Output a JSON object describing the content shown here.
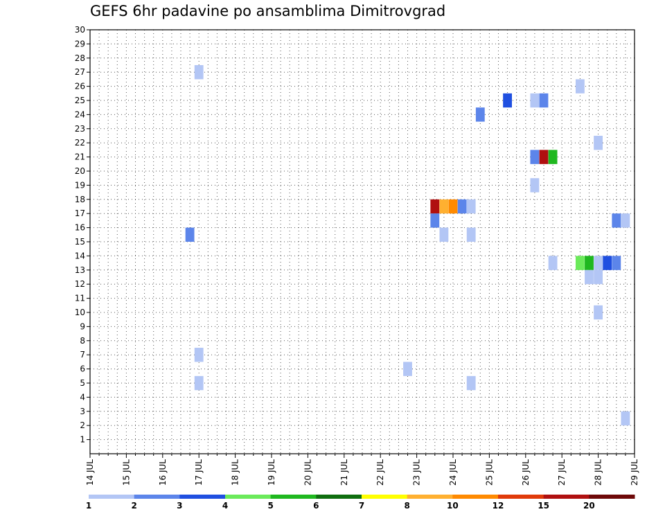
{
  "chart_data": {
    "type": "heatmap",
    "title": "GEFS 6hr padavine po ansamblima Dimitrovgrad",
    "xlabel": "",
    "ylabel": "",
    "x_ticks": [
      "14 JUL",
      "15 JUL",
      "16 JUL",
      "17 JUL",
      "18 JUL",
      "19 JUL",
      "20 JUL",
      "21 JUL",
      "22 JUL",
      "23 JUL",
      "24 JUL",
      "25 JUL",
      "26 JUL",
      "27 JUL",
      "28 JUL",
      "29 JUL"
    ],
    "x_range_days": [
      14,
      29
    ],
    "y_ticks": [
      1,
      2,
      3,
      4,
      5,
      6,
      7,
      8,
      9,
      10,
      11,
      12,
      13,
      14,
      15,
      16,
      17,
      18,
      19,
      20,
      21,
      22,
      23,
      24,
      25,
      26,
      27,
      28,
      29,
      30
    ],
    "y_range": [
      0,
      30
    ],
    "grid": true,
    "grid_style": "dotted",
    "legend": {
      "placement": "bottom",
      "labels": [
        "1",
        "2",
        "3",
        "4",
        "5",
        "6",
        "7",
        "8",
        "10",
        "12",
        "15",
        "20"
      ],
      "colors": [
        "#b3c6f5",
        "#5c85ea",
        "#1f4fe0",
        "#6bea5a",
        "#1fb81f",
        "#0f6e0f",
        "#ffff00",
        "#ffb030",
        "#ff8a00",
        "#e03a0a",
        "#b01010",
        "#6e0808"
      ]
    },
    "cells": [
      {
        "day": 17.0,
        "member": 27,
        "value": 1.5
      },
      {
        "day": 17.0,
        "member": 7,
        "value": 1.5
      },
      {
        "day": 17.0,
        "member": 5,
        "value": 1.5
      },
      {
        "day": 16.75,
        "member": 15.5,
        "value": 2.5
      },
      {
        "day": 22.75,
        "member": 6,
        "value": 1.5
      },
      {
        "day": 23.5,
        "member": 17.5,
        "value": 15
      },
      {
        "day": 23.75,
        "member": 17.5,
        "value": 8
      },
      {
        "day": 24.0,
        "member": 17.5,
        "value": 10
      },
      {
        "day": 24.25,
        "member": 17.5,
        "value": 2.5
      },
      {
        "day": 24.5,
        "member": 17.5,
        "value": 1.5
      },
      {
        "day": 23.5,
        "member": 16.5,
        "value": 2.5
      },
      {
        "day": 23.75,
        "member": 15.5,
        "value": 1.5
      },
      {
        "day": 24.5,
        "member": 15.5,
        "value": 1.5
      },
      {
        "day": 24.5,
        "member": 5,
        "value": 1.5
      },
      {
        "day": 24.75,
        "member": 24,
        "value": 2.5
      },
      {
        "day": 25.5,
        "member": 25,
        "value": 3.5
      },
      {
        "day": 26.25,
        "member": 25,
        "value": 1.5
      },
      {
        "day": 26.5,
        "member": 25,
        "value": 2.5
      },
      {
        "day": 26.25,
        "member": 21,
        "value": 2.5
      },
      {
        "day": 26.5,
        "member": 21,
        "value": 17
      },
      {
        "day": 26.75,
        "member": 21,
        "value": 5.5
      },
      {
        "day": 26.25,
        "member": 19,
        "value": 1.5
      },
      {
        "day": 26.75,
        "member": 13.5,
        "value": 1.5
      },
      {
        "day": 27.5,
        "member": 26,
        "value": 1.5
      },
      {
        "day": 28.0,
        "member": 22,
        "value": 1.5
      },
      {
        "day": 27.5,
        "member": 13.5,
        "value": 4.5
      },
      {
        "day": 27.75,
        "member": 13.5,
        "value": 5.5
      },
      {
        "day": 28.0,
        "member": 13.5,
        "value": 1.5
      },
      {
        "day": 28.25,
        "member": 13.5,
        "value": 3.5
      },
      {
        "day": 28.5,
        "member": 13.5,
        "value": 2.5
      },
      {
        "day": 27.75,
        "member": 12.5,
        "value": 1.5
      },
      {
        "day": 28.0,
        "member": 12.5,
        "value": 1.5
      },
      {
        "day": 28.0,
        "member": 10,
        "value": 1.5
      },
      {
        "day": 28.5,
        "member": 16.5,
        "value": 2.5
      },
      {
        "day": 28.75,
        "member": 16.5,
        "value": 1.5
      },
      {
        "day": 28.75,
        "member": 2.5,
        "value": 1.5
      }
    ]
  }
}
